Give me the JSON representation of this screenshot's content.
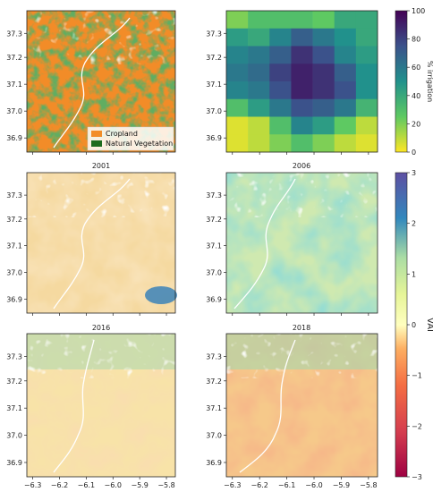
{
  "panels": [
    {
      "id": "landcover",
      "title": ""
    },
    {
      "id": "irrigation",
      "title": ""
    },
    {
      "id": "vai2001",
      "title": "2001"
    },
    {
      "id": "vai2006",
      "title": "2006"
    },
    {
      "id": "vai2016",
      "title": "2016"
    },
    {
      "id": "vai2018",
      "title": "2018"
    }
  ],
  "legend": {
    "cropland": {
      "label": "Cropland",
      "color": "#f28c28"
    },
    "natural": {
      "label": "Natural Vegetation",
      "color": "#1e6b1e"
    }
  },
  "axes": {
    "y_ticks": [
      "37.3",
      "37.2",
      "37.1",
      "37.0",
      "36.9"
    ],
    "x_ticks": [
      "−6.3",
      "−6.2",
      "−6.1",
      "−6.0",
      "−5.9",
      "−5.8"
    ]
  },
  "colorbars": {
    "irrigation": {
      "label": "% irrigation",
      "ticks": [
        "100",
        "80",
        "60",
        "40",
        "20",
        "0"
      ],
      "colormap": "viridis_r"
    },
    "vai": {
      "label": "VAI",
      "ticks": [
        "3",
        "2",
        "1",
        "0",
        "−1",
        "−2",
        "−3"
      ],
      "colormap": "Spectral"
    }
  },
  "chart_data": {
    "type": "heatmap",
    "title": "",
    "xlabel": "",
    "ylabel": "% irrigation",
    "rows_lat_top_to_bottom": 8,
    "cols_lon_left_to_right": 7,
    "values": [
      [
        20,
        30,
        30,
        30,
        25,
        40,
        40
      ],
      [
        45,
        40,
        55,
        70,
        60,
        50,
        40
      ],
      [
        55,
        60,
        70,
        85,
        75,
        55,
        45
      ],
      [
        60,
        65,
        80,
        90,
        85,
        70,
        50
      ],
      [
        55,
        60,
        75,
        90,
        85,
        75,
        50
      ],
      [
        30,
        45,
        60,
        75,
        70,
        60,
        35
      ],
      [
        5,
        10,
        30,
        55,
        45,
        25,
        10
      ],
      [
        5,
        10,
        20,
        30,
        20,
        10,
        5
      ]
    ],
    "ylim": [
      0,
      100
    ]
  }
}
